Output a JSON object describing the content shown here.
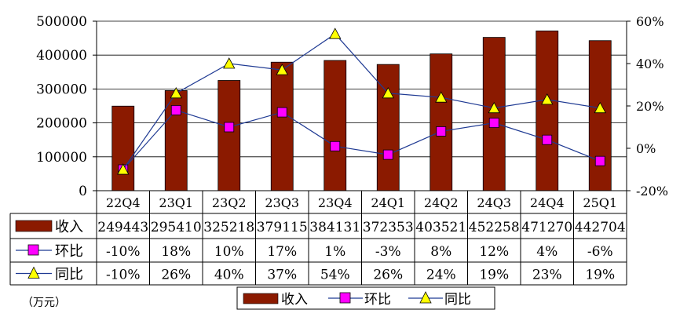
{
  "unit_label": "（万元）",
  "colors": {
    "bar": "#8B1A00",
    "qoq_line": "#1F3A93",
    "qoq_marker": "#FF00FF",
    "yoy_line": "#1F3A93",
    "yoy_marker": "#FFFF00",
    "grid": "#000000"
  },
  "chart_data": {
    "type": "bar",
    "categories": [
      "22Q4",
      "23Q1",
      "23Q2",
      "23Q3",
      "23Q4",
      "24Q1",
      "24Q2",
      "24Q3",
      "24Q4",
      "25Q1"
    ],
    "y_left": {
      "ylim": [
        0,
        500000
      ],
      "ticks": [
        "0",
        "100000",
        "200000",
        "300000",
        "400000",
        "500000"
      ]
    },
    "y_right": {
      "ylim": [
        -20,
        60
      ],
      "ticks": [
        "-20%",
        "0%",
        "20%",
        "40%",
        "60%"
      ]
    },
    "grid": true,
    "legend_position": "bottom",
    "series": [
      {
        "name": "收入",
        "type": "bar",
        "axis": "left",
        "values": [
          249443,
          295410,
          325218,
          379115,
          384131,
          372353,
          403521,
          452258,
          471270,
          442704
        ],
        "labels": [
          "249443",
          "295410",
          "325218",
          "379115",
          "384131",
          "372353",
          "403521",
          "452258",
          "471270",
          "442704"
        ]
      },
      {
        "name": "环比",
        "type": "line",
        "marker": "square",
        "axis": "right",
        "values": [
          -10,
          18,
          10,
          17,
          1,
          -3,
          8,
          12,
          4,
          -6
        ],
        "labels": [
          "-10%",
          "18%",
          "10%",
          "17%",
          "1%",
          "-3%",
          "8%",
          "12%",
          "4%",
          "-6%"
        ]
      },
      {
        "name": "同比",
        "type": "line",
        "marker": "triangle",
        "axis": "right",
        "values": [
          -10,
          26,
          40,
          37,
          54,
          26,
          24,
          19,
          23,
          19
        ],
        "labels": [
          "-10%",
          "26%",
          "40%",
          "37%",
          "54%",
          "26%",
          "24%",
          "19%",
          "23%",
          "19%"
        ]
      }
    ]
  }
}
